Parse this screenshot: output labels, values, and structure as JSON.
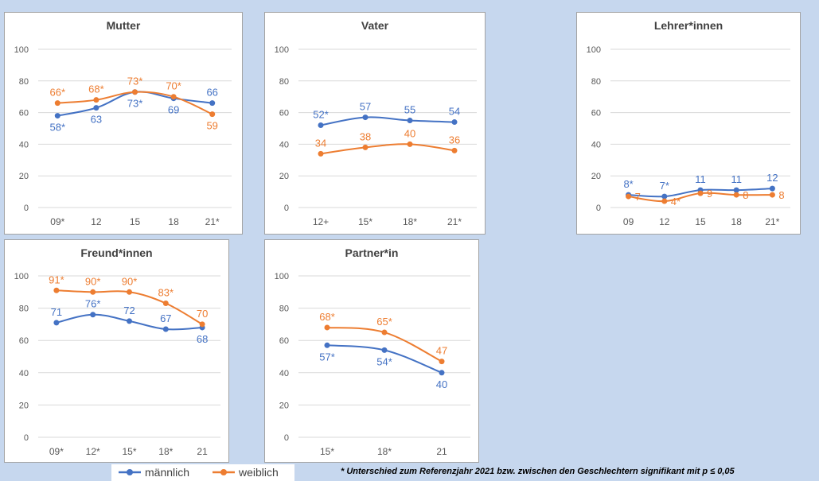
{
  "colors": {
    "maennlich": "#4472c4",
    "weiblich": "#ed7d31",
    "grid": "#d9d9d9",
    "axis_text": "#595959"
  },
  "legend": {
    "maennlich": "männlich",
    "weiblich": "weiblich"
  },
  "footnote": "* Unterschied zum Referenzjahr 2021 bzw. zwischen den Geschlechtern  signifikant mit p ≤ 0,05",
  "chart_data": [
    {
      "id": "mutter",
      "type": "line",
      "title": "Mutter",
      "categories": [
        "09*",
        "12",
        "15",
        "18",
        "21*"
      ],
      "ylim": [
        0,
        100
      ],
      "yticks": [
        0,
        20,
        40,
        60,
        80,
        100
      ],
      "grid": true,
      "series": [
        {
          "name": "männlich",
          "values": [
            58,
            63,
            73,
            69,
            66
          ],
          "labels": [
            "58*",
            "63",
            "73*",
            "69",
            "66"
          ],
          "label_pos": [
            "below",
            "below",
            "below",
            "below",
            "above"
          ]
        },
        {
          "name": "weiblich",
          "values": [
            66,
            68,
            73,
            70,
            59
          ],
          "labels": [
            "66*",
            "68*",
            "73*",
            "70*",
            "59"
          ],
          "label_pos": [
            "above",
            "above",
            "above",
            "above",
            "below"
          ]
        }
      ]
    },
    {
      "id": "vater",
      "type": "line",
      "title": "Vater",
      "categories": [
        "12+",
        "15*",
        "18*",
        "21*"
      ],
      "ylim": [
        0,
        100
      ],
      "yticks": [
        0,
        20,
        40,
        60,
        80,
        100
      ],
      "grid": true,
      "series": [
        {
          "name": "männlich",
          "values": [
            52,
            57,
            55,
            54
          ],
          "labels": [
            "52*",
            "57",
            "55",
            "54"
          ],
          "label_pos": [
            "above",
            "above",
            "above",
            "above"
          ]
        },
        {
          "name": "weiblich",
          "values": [
            34,
            38,
            40,
            36
          ],
          "labels": [
            "34",
            "38",
            "40",
            "36"
          ],
          "label_pos": [
            "above",
            "above",
            "above",
            "above"
          ]
        }
      ]
    },
    {
      "id": "lehrer",
      "type": "line",
      "title": "Lehrer*innen",
      "categories": [
        "09",
        "12",
        "15",
        "18",
        "21*"
      ],
      "ylim": [
        0,
        100
      ],
      "yticks": [
        0,
        20,
        40,
        60,
        80,
        100
      ],
      "grid": true,
      "series": [
        {
          "name": "männlich",
          "values": [
            8,
            7,
            11,
            11,
            12
          ],
          "labels": [
            "8*",
            "7*",
            "11",
            "11",
            "12"
          ],
          "label_pos": [
            "above",
            "above",
            "above",
            "above",
            "above"
          ]
        },
        {
          "name": "weiblich",
          "values": [
            7,
            4,
            9,
            8,
            8
          ],
          "labels": [
            "7",
            "4*",
            "9",
            "8",
            "8"
          ],
          "label_pos": [
            "right",
            "right",
            "right",
            "right",
            "right"
          ]
        }
      ]
    },
    {
      "id": "freund",
      "type": "line",
      "title": "Freund*innen",
      "categories": [
        "09*",
        "12*",
        "15*",
        "18*",
        "21"
      ],
      "ylim": [
        0,
        100
      ],
      "yticks": [
        0,
        20,
        40,
        60,
        80,
        100
      ],
      "grid": true,
      "series": [
        {
          "name": "männlich",
          "values": [
            71,
            76,
            72,
            67,
            68
          ],
          "labels": [
            "71",
            "76*",
            "72",
            "67",
            "68"
          ],
          "label_pos": [
            "above",
            "above",
            "above",
            "above",
            "below"
          ]
        },
        {
          "name": "weiblich",
          "values": [
            91,
            90,
            90,
            83,
            70
          ],
          "labels": [
            "91*",
            "90*",
            "90*",
            "83*",
            "70"
          ],
          "label_pos": [
            "above",
            "above",
            "above",
            "above",
            "above"
          ]
        }
      ]
    },
    {
      "id": "partner",
      "type": "line",
      "title": "Partner*in",
      "categories": [
        "15*",
        "18*",
        "21"
      ],
      "ylim": [
        0,
        100
      ],
      "yticks": [
        0,
        20,
        40,
        60,
        80,
        100
      ],
      "grid": true,
      "series": [
        {
          "name": "männlich",
          "values": [
            57,
            54,
            40
          ],
          "labels": [
            "57*",
            "54*",
            "40"
          ],
          "label_pos": [
            "below",
            "below",
            "below"
          ]
        },
        {
          "name": "weiblich",
          "values": [
            68,
            65,
            47
          ],
          "labels": [
            "68*",
            "65*",
            "47"
          ],
          "label_pos": [
            "above",
            "above",
            "above"
          ]
        }
      ]
    }
  ]
}
